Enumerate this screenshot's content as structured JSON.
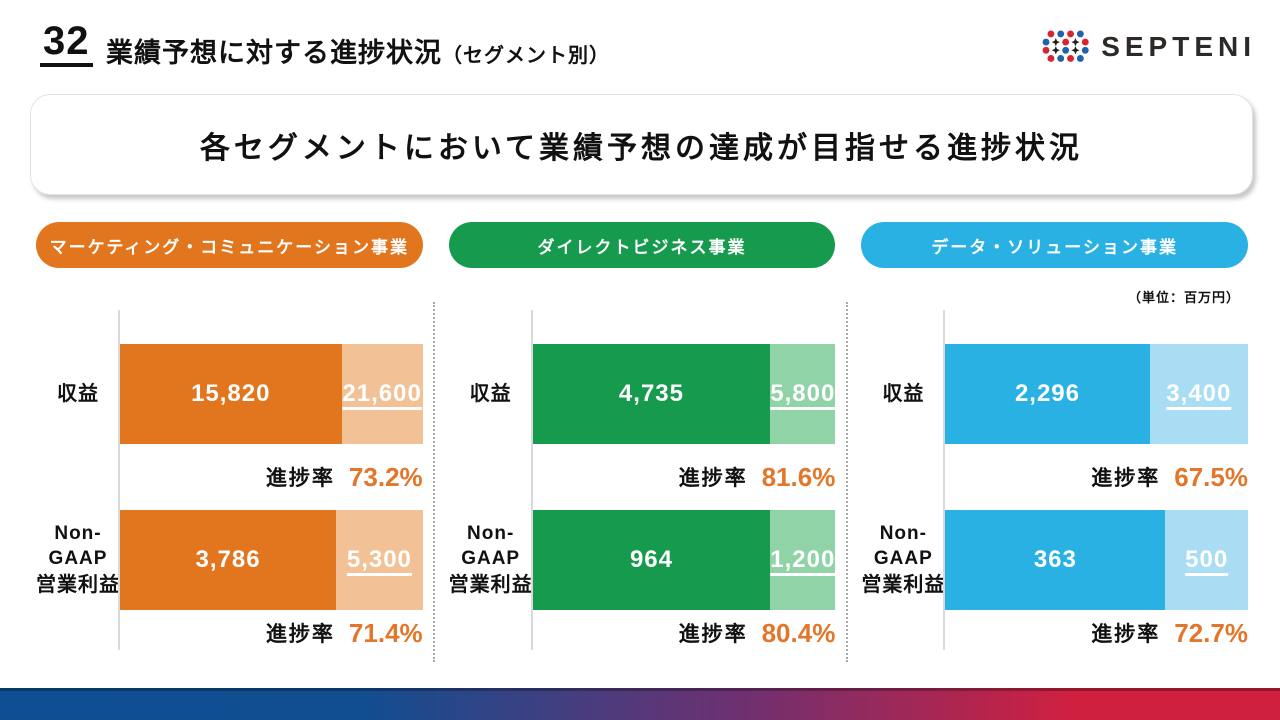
{
  "page": {
    "number": "32",
    "title": "業績予想に対する進捗状況",
    "title_suffix": "（セグメント別）"
  },
  "logo": {
    "text": "SEPTENI"
  },
  "headline": "各セグメントにおいて業績予想の達成が目指せる進捗状況",
  "unit_note": "（単位：百万円）",
  "labels": {
    "revenue": "収益",
    "nongaap_line1": "Non-",
    "nongaap_line2": "GAAP",
    "nongaap_line3": "営業利益",
    "progress": "進捗率"
  },
  "theme": {
    "progress_value_color": "#e2762b",
    "axis_gray": "#d9d9d9",
    "footer_gradient_left": "#0e4e92",
    "footer_gradient_right": "#d0203f",
    "logo_red": "#d8242f",
    "logo_blue": "#2062ae",
    "logo_black": "#221e1b"
  },
  "segments": [
    {
      "name": "マーケティング・コミュニケーション事業",
      "color_dark": "#e2761f",
      "color_light": "#f2c195",
      "revenue": {
        "actual": "15,820",
        "forecast": "21,600",
        "progress": "73.2%",
        "pct": 73.2
      },
      "profit": {
        "actual": "3,786",
        "forecast": "5,300",
        "progress": "71.4%",
        "pct": 71.4
      }
    },
    {
      "name": "ダイレクトビジネス事業",
      "color_dark": "#169b4e",
      "color_light": "#8fd3a6",
      "revenue": {
        "actual": "4,735",
        "forecast": "5,800",
        "progress": "81.6%",
        "pct": 81.6
      },
      "profit": {
        "actual": "964",
        "forecast": "1,200",
        "progress": "80.4%",
        "pct": 80.4
      }
    },
    {
      "name": "データ・ソリューション事業",
      "color_dark": "#2ab1e4",
      "color_light": "#a9ddf4",
      "revenue": {
        "actual": "2,296",
        "forecast": "3,400",
        "progress": "67.5%",
        "pct": 67.5
      },
      "profit": {
        "actual": "363",
        "forecast": "500",
        "progress": "72.7%",
        "pct": 72.7
      }
    }
  ],
  "chart_data": {
    "type": "bar",
    "title": "業績予想に対する進捗状況（セグメント別）",
    "subtitle": "各セグメントにおいて業績予想の達成が目指せる進捗状況",
    "unit": "百万円",
    "orientation": "horizontal",
    "groups": [
      {
        "segment": "マーケティング・コミュニケーション事業",
        "metrics": [
          {
            "label": "収益",
            "actual": 15820,
            "forecast": 21600,
            "progress_pct": 73.2
          },
          {
            "label": "Non-GAAP営業利益",
            "actual": 3786,
            "forecast": 5300,
            "progress_pct": 71.4
          }
        ]
      },
      {
        "segment": "ダイレクトビジネス事業",
        "metrics": [
          {
            "label": "収益",
            "actual": 4735,
            "forecast": 5800,
            "progress_pct": 81.6
          },
          {
            "label": "Non-GAAP営業利益",
            "actual": 964,
            "forecast": 1200,
            "progress_pct": 80.4
          }
        ]
      },
      {
        "segment": "データ・ソリューション事業",
        "metrics": [
          {
            "label": "収益",
            "actual": 2296,
            "forecast": 3400,
            "progress_pct": 67.5
          },
          {
            "label": "Non-GAAP営業利益",
            "actual": 363,
            "forecast": 500,
            "progress_pct": 72.7
          }
        ]
      }
    ]
  }
}
